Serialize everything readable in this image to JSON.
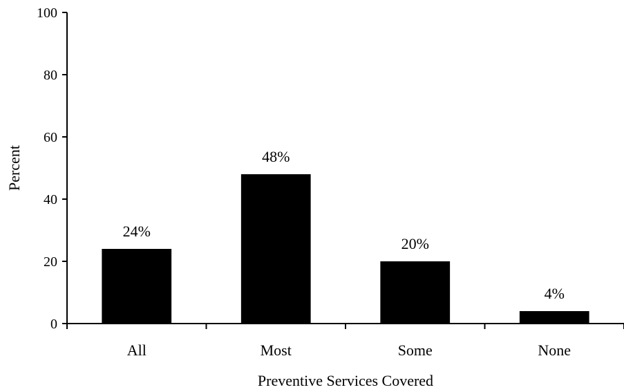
{
  "chart_data": {
    "type": "bar",
    "categories": [
      "All",
      "Most",
      "Some",
      "None"
    ],
    "values": [
      24,
      48,
      20,
      4
    ],
    "data_labels": [
      "24%",
      "48%",
      "20%",
      "4%"
    ],
    "title": "",
    "xlabel": "Preventive Services Covered",
    "ylabel": "Percent",
    "ylim": [
      0,
      100
    ],
    "yticks": [
      0,
      20,
      40,
      60,
      80,
      100
    ],
    "grid": false,
    "legend": "none",
    "bar_color": "#000000"
  }
}
